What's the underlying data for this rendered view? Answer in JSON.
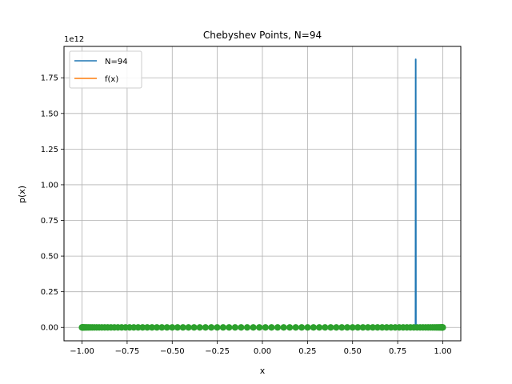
{
  "chart_data": {
    "type": "line",
    "title": "Chebyshev Points, N=94",
    "xlabel": "x",
    "ylabel": "p(x)",
    "y_offset_text": "1e12",
    "xlim": [
      -1.1,
      1.1
    ],
    "ylim": [
      -0.094,
      1.97
    ],
    "grid": true,
    "legend_position": "top-left",
    "x_ticks": [
      -1.0,
      -0.75,
      -0.5,
      -0.25,
      0.0,
      0.25,
      0.5,
      0.75,
      1.0
    ],
    "x_tick_labels": [
      "−1.00",
      "−0.75",
      "−0.50",
      "−0.25",
      "0.00",
      "0.25",
      "0.50",
      "0.75",
      "1.00"
    ],
    "y_ticks": [
      0.0,
      0.25,
      0.5,
      0.75,
      1.0,
      1.25,
      1.5,
      1.75
    ],
    "y_tick_labels": [
      "0.00",
      "0.25",
      "0.50",
      "0.75",
      "1.00",
      "1.25",
      "1.50",
      "1.75"
    ],
    "series": [
      {
        "name": "N=94",
        "kind": "line",
        "color": "#1f77b4",
        "x": [
          -1.0,
          0.848,
          0.849,
          0.851,
          0.852,
          1.0
        ],
        "y": [
          0.0,
          0.0,
          1.88,
          1.88,
          0.0,
          0.0
        ]
      },
      {
        "name": "f(x)",
        "kind": "line",
        "color": "#ff7f0e",
        "x": [
          -1.0,
          1.0
        ],
        "y": [
          0.0,
          0.0
        ]
      },
      {
        "kind": "scatter",
        "color": "#2ca02c",
        "node_count": 94,
        "y_value": 0.0
      }
    ]
  }
}
